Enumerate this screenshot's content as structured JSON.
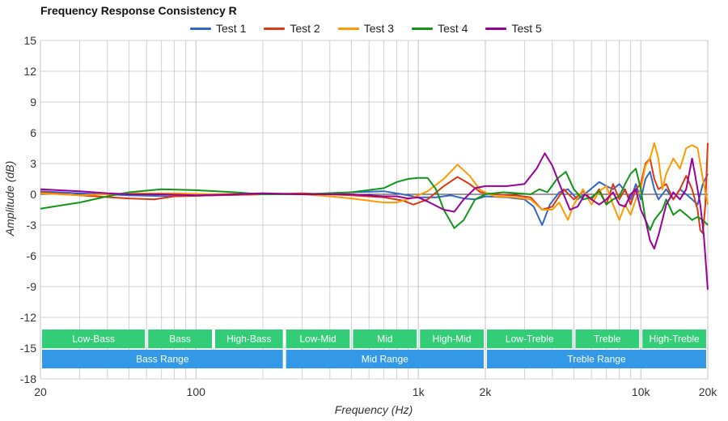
{
  "chart_data": {
    "type": "line",
    "title": "Frequency Response Consistency R",
    "xlabel": "Frequency (Hz)",
    "ylabel": "Amplitude (dB)",
    "xscale": "log",
    "xlim": [
      20,
      20000
    ],
    "ylim": [
      -18,
      15
    ],
    "grid": true,
    "legend_position": "top-center",
    "y_ticks": [
      15,
      12,
      9,
      6,
      3,
      0,
      -3,
      -6,
      -9,
      -12,
      -15,
      -18
    ],
    "x_ticks": [
      {
        "value": 20,
        "label": "20"
      },
      {
        "value": 100,
        "label": "100"
      },
      {
        "value": 1000,
        "label": "1k"
      },
      {
        "value": 2000,
        "label": "2k"
      },
      {
        "value": 10000,
        "label": "10k"
      },
      {
        "value": 20000,
        "label": "20k"
      }
    ],
    "x_minor_grid": [
      30,
      40,
      50,
      60,
      70,
      80,
      90,
      200,
      300,
      400,
      500,
      600,
      700,
      800,
      900,
      3000,
      4000,
      5000,
      6000,
      7000,
      8000,
      9000
    ],
    "series": [
      {
        "name": "Test 1",
        "color": "#3366cc",
        "points": [
          [
            20,
            0.3
          ],
          [
            30,
            0.1
          ],
          [
            50,
            -0.1
          ],
          [
            80,
            -0.2
          ],
          [
            120,
            -0.1
          ],
          [
            200,
            0.0
          ],
          [
            300,
            0.0
          ],
          [
            500,
            0.2
          ],
          [
            700,
            0.3
          ],
          [
            850,
            0.0
          ],
          [
            1000,
            -0.3
          ],
          [
            1200,
            -0.3
          ],
          [
            1400,
            -0.1
          ],
          [
            1600,
            -0.4
          ],
          [
            1800,
            -0.5
          ],
          [
            2000,
            -0.2
          ],
          [
            2500,
            -0.3
          ],
          [
            3000,
            -0.5
          ],
          [
            3300,
            -1.2
          ],
          [
            3600,
            -3.0
          ],
          [
            3900,
            -1.0
          ],
          [
            4300,
            0.2
          ],
          [
            4700,
            0.5
          ],
          [
            5200,
            -0.5
          ],
          [
            5800,
            0.3
          ],
          [
            6500,
            1.2
          ],
          [
            7000,
            0.8
          ],
          [
            7500,
            0.5
          ],
          [
            8000,
            1.0
          ],
          [
            8500,
            0.3
          ],
          [
            9000,
            -0.5
          ],
          [
            9500,
            1.0
          ],
          [
            10000,
            -0.5
          ],
          [
            10500,
            1.5
          ],
          [
            11000,
            2.2
          ],
          [
            11500,
            0.5
          ],
          [
            12000,
            -0.5
          ],
          [
            13000,
            0.5
          ],
          [
            14000,
            -0.5
          ],
          [
            15000,
            0.5
          ],
          [
            16000,
            0.0
          ],
          [
            17000,
            -0.5
          ],
          [
            18000,
            -1.0
          ],
          [
            19000,
            1.0
          ],
          [
            20000,
            2.0
          ]
        ]
      },
      {
        "name": "Test 2",
        "color": "#dc3912",
        "points": [
          [
            20,
            0.2
          ],
          [
            30,
            -0.1
          ],
          [
            50,
            -0.4
          ],
          [
            65,
            -0.5
          ],
          [
            80,
            -0.2
          ],
          [
            120,
            -0.1
          ],
          [
            200,
            0.0
          ],
          [
            300,
            0.1
          ],
          [
            500,
            -0.1
          ],
          [
            700,
            -0.3
          ],
          [
            850,
            -0.6
          ],
          [
            950,
            -1.0
          ],
          [
            1100,
            -0.5
          ],
          [
            1300,
            0.8
          ],
          [
            1500,
            1.7
          ],
          [
            1700,
            1.0
          ],
          [
            1900,
            0.2
          ],
          [
            2200,
            0.0
          ],
          [
            2700,
            -0.1
          ],
          [
            3200,
            -0.3
          ],
          [
            3600,
            -1.5
          ],
          [
            4000,
            -1.2
          ],
          [
            4500,
            0.5
          ],
          [
            5000,
            -0.5
          ],
          [
            5500,
            0.3
          ],
          [
            6000,
            -0.5
          ],
          [
            6500,
            0.5
          ],
          [
            7000,
            -1.0
          ],
          [
            7500,
            1.0
          ],
          [
            8000,
            -0.5
          ],
          [
            8500,
            0.5
          ],
          [
            9000,
            -1.0
          ],
          [
            9500,
            0.5
          ],
          [
            10000,
            1.0
          ],
          [
            10500,
            3.0
          ],
          [
            11000,
            3.5
          ],
          [
            11500,
            1.5
          ],
          [
            12000,
            0.5
          ],
          [
            13000,
            1.0
          ],
          [
            14000,
            -0.5
          ],
          [
            15000,
            0.5
          ],
          [
            16000,
            1.8
          ],
          [
            17000,
            0.5
          ],
          [
            18000,
            -1.5
          ],
          [
            18500,
            -3.5
          ],
          [
            19000,
            -3.8
          ],
          [
            19500,
            -1.0
          ],
          [
            20000,
            5.0
          ]
        ]
      },
      {
        "name": "Test 3",
        "color": "#ff9900",
        "points": [
          [
            20,
            0.1
          ],
          [
            30,
            -0.1
          ],
          [
            50,
            0.1
          ],
          [
            80,
            0.1
          ],
          [
            120,
            0.0
          ],
          [
            200,
            0.1
          ],
          [
            300,
            0.0
          ],
          [
            400,
            -0.2
          ],
          [
            500,
            -0.4
          ],
          [
            700,
            -0.8
          ],
          [
            800,
            -0.8
          ],
          [
            950,
            -0.3
          ],
          [
            1100,
            0.3
          ],
          [
            1300,
            1.5
          ],
          [
            1500,
            2.9
          ],
          [
            1700,
            1.8
          ],
          [
            1900,
            0.4
          ],
          [
            2200,
            -0.2
          ],
          [
            2700,
            -0.3
          ],
          [
            3200,
            -0.5
          ],
          [
            3600,
            -1.5
          ],
          [
            4000,
            -1.5
          ],
          [
            4300,
            -0.8
          ],
          [
            4700,
            -2.5
          ],
          [
            5000,
            -1.0
          ],
          [
            5500,
            0.5
          ],
          [
            6000,
            -1.0
          ],
          [
            6500,
            0.3
          ],
          [
            7000,
            0.8
          ],
          [
            7500,
            -1.0
          ],
          [
            8000,
            -2.5
          ],
          [
            8500,
            -1.0
          ],
          [
            9000,
            -2.0
          ],
          [
            9500,
            -0.5
          ],
          [
            10000,
            0.5
          ],
          [
            10500,
            2.8
          ],
          [
            11000,
            3.5
          ],
          [
            11500,
            5.0
          ],
          [
            12000,
            3.5
          ],
          [
            12500,
            0.5
          ],
          [
            13000,
            2.0
          ],
          [
            14000,
            3.5
          ],
          [
            15000,
            2.5
          ],
          [
            16000,
            4.5
          ],
          [
            17000,
            4.8
          ],
          [
            18000,
            4.5
          ],
          [
            19000,
            1.5
          ],
          [
            20000,
            -1.0
          ]
        ]
      },
      {
        "name": "Test 4",
        "color": "#109618",
        "points": [
          [
            20,
            -1.4
          ],
          [
            30,
            -0.8
          ],
          [
            40,
            -0.2
          ],
          [
            50,
            0.2
          ],
          [
            70,
            0.5
          ],
          [
            100,
            0.4
          ],
          [
            150,
            0.2
          ],
          [
            200,
            0.0
          ],
          [
            300,
            0.0
          ],
          [
            500,
            0.2
          ],
          [
            700,
            0.6
          ],
          [
            800,
            1.2
          ],
          [
            900,
            1.5
          ],
          [
            1000,
            1.6
          ],
          [
            1100,
            1.6
          ],
          [
            1200,
            0.5
          ],
          [
            1300,
            -1.5
          ],
          [
            1450,
            -3.3
          ],
          [
            1600,
            -2.5
          ],
          [
            1800,
            -0.5
          ],
          [
            2000,
            0.0
          ],
          [
            2400,
            0.2
          ],
          [
            2800,
            0.1
          ],
          [
            3200,
            0.0
          ],
          [
            3500,
            0.5
          ],
          [
            3800,
            0.2
          ],
          [
            4200,
            1.5
          ],
          [
            4600,
            2.2
          ],
          [
            5000,
            0.5
          ],
          [
            5500,
            -0.5
          ],
          [
            6000,
            -0.3
          ],
          [
            6500,
            0.3
          ],
          [
            7000,
            -1.0
          ],
          [
            7500,
            -0.5
          ],
          [
            8000,
            -0.2
          ],
          [
            8500,
            1.0
          ],
          [
            9000,
            2.0
          ],
          [
            9500,
            2.5
          ],
          [
            10000,
            0.5
          ],
          [
            10500,
            -2.5
          ],
          [
            11000,
            -3.5
          ],
          [
            11500,
            -2.5
          ],
          [
            12000,
            -2.0
          ],
          [
            12500,
            -1.5
          ],
          [
            13000,
            -0.5
          ],
          [
            14000,
            -2.0
          ],
          [
            15000,
            -1.5
          ],
          [
            16000,
            -2.0
          ],
          [
            17000,
            -2.5
          ],
          [
            18000,
            -2.2
          ],
          [
            19000,
            -2.5
          ],
          [
            20000,
            -3.0
          ]
        ]
      },
      {
        "name": "Test 5",
        "color": "#990099",
        "points": [
          [
            20,
            0.5
          ],
          [
            30,
            0.3
          ],
          [
            40,
            0.1
          ],
          [
            50,
            0.0
          ],
          [
            70,
            0.0
          ],
          [
            100,
            -0.1
          ],
          [
            150,
            0.0
          ],
          [
            200,
            0.1
          ],
          [
            300,
            0.0
          ],
          [
            500,
            0.0
          ],
          [
            700,
            -0.2
          ],
          [
            800,
            -0.2
          ],
          [
            900,
            -0.4
          ],
          [
            1000,
            -0.3
          ],
          [
            1100,
            -0.7
          ],
          [
            1300,
            -1.5
          ],
          [
            1450,
            -1.7
          ],
          [
            1600,
            -0.5
          ],
          [
            1800,
            0.6
          ],
          [
            2000,
            0.8
          ],
          [
            2500,
            0.8
          ],
          [
            3000,
            1.0
          ],
          [
            3400,
            2.5
          ],
          [
            3700,
            4.0
          ],
          [
            4000,
            2.8
          ],
          [
            4400,
            0.5
          ],
          [
            4800,
            -1.5
          ],
          [
            5200,
            -1.2
          ],
          [
            5600,
            0.0
          ],
          [
            6000,
            -0.5
          ],
          [
            6500,
            -1.0
          ],
          [
            7000,
            -0.5
          ],
          [
            7500,
            0.2
          ],
          [
            8000,
            -1.0
          ],
          [
            8500,
            -1.2
          ],
          [
            9000,
            0.0
          ],
          [
            9500,
            0.5
          ],
          [
            10000,
            -1.5
          ],
          [
            10500,
            -2.5
          ],
          [
            11000,
            -4.5
          ],
          [
            11500,
            -5.3
          ],
          [
            12000,
            -4.0
          ],
          [
            12500,
            -2.5
          ],
          [
            13000,
            -1.0
          ],
          [
            14000,
            0.2
          ],
          [
            15000,
            -0.5
          ],
          [
            16000,
            0.5
          ],
          [
            17000,
            3.5
          ],
          [
            17500,
            2.0
          ],
          [
            18500,
            -1.0
          ],
          [
            19200,
            -4.0
          ],
          [
            20000,
            -9.3
          ]
        ]
      }
    ],
    "range_bands": [
      {
        "label": "Low-Bass",
        "from": 20,
        "to": 60
      },
      {
        "label": "Bass",
        "from": 60,
        "to": 120
      },
      {
        "label": "High-Bass",
        "from": 120,
        "to": 250
      },
      {
        "label": "Low-Mid",
        "from": 250,
        "to": 500
      },
      {
        "label": "Mid",
        "from": 500,
        "to": 1000
      },
      {
        "label": "High-Mid",
        "from": 1000,
        "to": 2000
      },
      {
        "label": "Low-Treble",
        "from": 2000,
        "to": 5000
      },
      {
        "label": "Treble",
        "from": 5000,
        "to": 10000
      },
      {
        "label": "High-Treble",
        "from": 10000,
        "to": 20000
      }
    ],
    "range_groups": [
      {
        "label": "Bass Range",
        "from": 20,
        "to": 250
      },
      {
        "label": "Mid Range",
        "from": 250,
        "to": 2000
      },
      {
        "label": "Treble Range",
        "from": 2000,
        "to": 20000
      }
    ],
    "band_colors": {
      "narrow": "#33cc77",
      "group": "#3399e6"
    }
  }
}
